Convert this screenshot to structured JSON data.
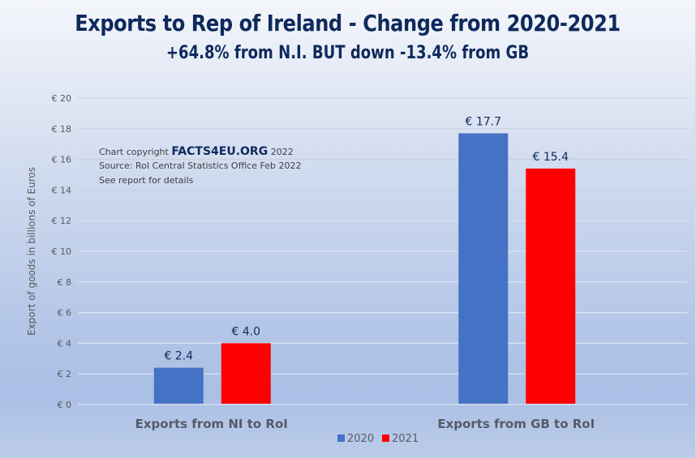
{
  "chart_data": {
    "type": "bar",
    "title": "Exports to Rep of Ireland - Change from 2020-2021",
    "subtitle": "+64.8% from N.I. BUT down -13.4% from GB",
    "categories": [
      "Exports from NI to RoI",
      "Exports from GB to RoI"
    ],
    "series": [
      {
        "name": "2020",
        "color": "#4472c4",
        "values": [
          2.4,
          17.7
        ],
        "labels": [
          "€ 2.4",
          "€ 17.7"
        ]
      },
      {
        "name": "2021",
        "color": "#ff0000",
        "values": [
          4.0,
          15.4
        ],
        "labels": [
          "€ 4.0",
          "€ 15.4"
        ]
      }
    ],
    "ylabel": "Export of goods in billions of Euros",
    "xlabel": "",
    "ylim": [
      0,
      20
    ],
    "yticks": [
      0,
      2,
      4,
      6,
      8,
      10,
      12,
      14,
      16,
      18,
      20
    ],
    "ytick_labels": [
      "€ 0",
      "€ 2",
      "€ 4",
      "€ 6",
      "€ 8",
      "€ 10",
      "€ 12",
      "€ 14",
      "€ 16",
      "€ 18",
      "€ 20"
    ],
    "grid": true,
    "legend": "bottom"
  },
  "annotation": {
    "copyright_prefix": "Chart copyright",
    "brand": "FACTS4EU.ORG",
    "copyright_year": "2022",
    "source": "Source: RoI Central Statistics Office Feb 2022",
    "see_report": "See report for details"
  }
}
